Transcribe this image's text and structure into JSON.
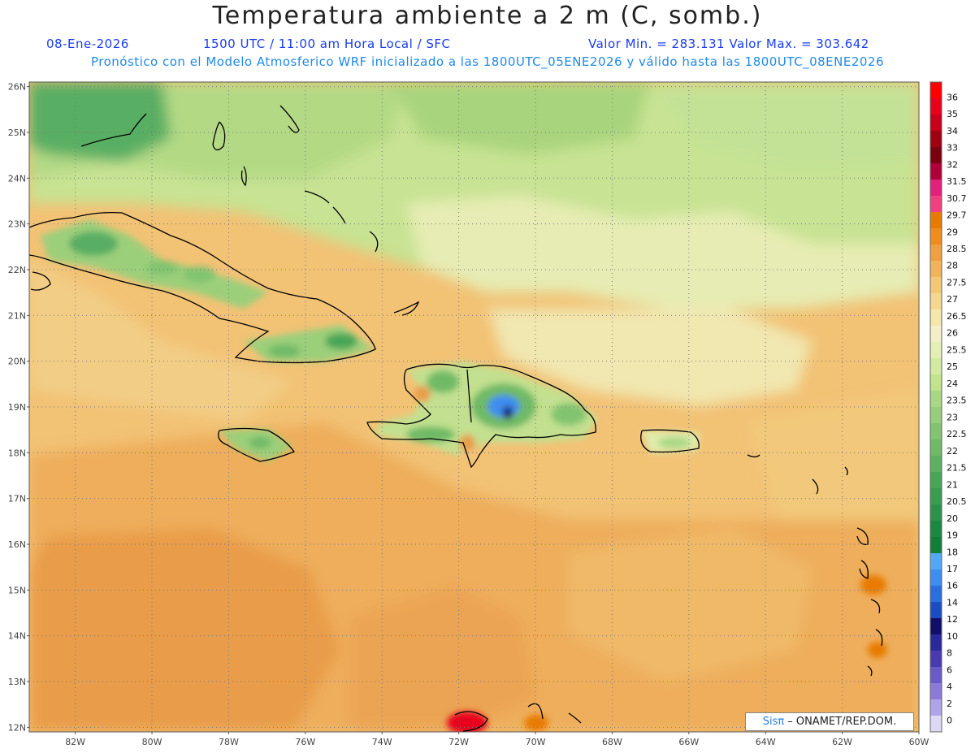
{
  "header": {
    "title": "Temperatura ambiente a 2 m (C, somb.)",
    "date": "08-Ene-2026",
    "time": "1500 UTC / 11:00 am Hora Local / SFC",
    "minmax": "Valor Min. = 283.131  Valor Max. = 303.642",
    "model_info": "Pronóstico con el Modelo Atmosferico WRF inicializado a las 1800UTC_05ENE2026 y válido hasta las  1800UTC_08ENE2026"
  },
  "map": {
    "lon_range": [
      -83.2,
      -60
    ],
    "lat_range": [
      11.9,
      26.1
    ],
    "lat_labels": [
      "26N",
      "25N",
      "24N",
      "23N",
      "22N",
      "21N",
      "20N",
      "19N",
      "18N",
      "17N",
      "16N",
      "15N",
      "14N",
      "13N",
      "12N"
    ],
    "lon_labels": [
      "82W",
      "80W",
      "78W",
      "76W",
      "74W",
      "72W",
      "70W",
      "68W",
      "66W",
      "64W",
      "62W",
      "60W"
    ],
    "credit_brand": "Sisπ",
    "credit_text": "– ONAMET/REP.DOM."
  },
  "legend": {
    "levels": [
      "36",
      "35",
      "34",
      "33",
      "32",
      "31.5",
      "30.7",
      "29.7",
      "29",
      "28.5",
      "28",
      "27.5",
      "27",
      "26.5",
      "26",
      "25.5",
      "25",
      "24",
      "23.5",
      "23",
      "22.5",
      "22",
      "21.5",
      "21",
      "20.5",
      "20",
      "19",
      "18",
      "17",
      "16",
      "14",
      "12",
      "10",
      "8",
      "6",
      "4",
      "2",
      "0"
    ],
    "colors": [
      "#ff0000",
      "#e8001a",
      "#c8001a",
      "#a00010",
      "#7a0010",
      "#b0003a",
      "#e0207a",
      "#f04080",
      "#e87a00",
      "#f08c1e",
      "#f0a040",
      "#f2b45a",
      "#f5c877",
      "#f5d890",
      "#f5e6aa",
      "#f3efc8",
      "#e3efb4",
      "#d2eba0",
      "#c0e38c",
      "#a8d884",
      "#96ce7c",
      "#82c470",
      "#6fba66",
      "#5cb060",
      "#48a556",
      "#3a9c50",
      "#2a924a",
      "#1a8840",
      "#0f7f3a",
      "#52a8f5",
      "#3d8ef0",
      "#2a6ee0",
      "#1a4ec0",
      "#10106a",
      "#2a2a9a",
      "#4a3ab0",
      "#6a5ac8",
      "#8c7ad8",
      "#b0a4e8",
      "#dcd8f5"
    ]
  }
}
